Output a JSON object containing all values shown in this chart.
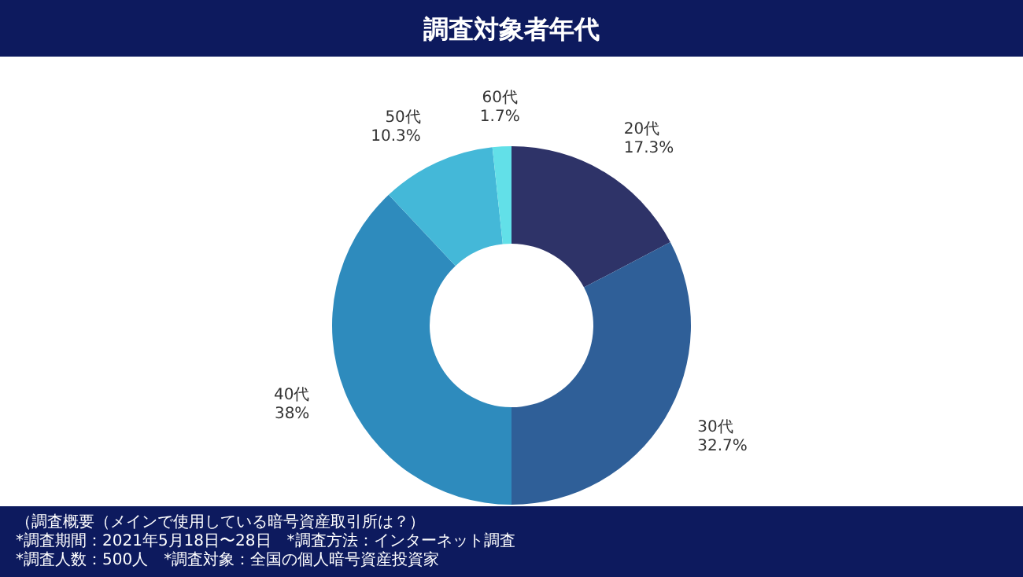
{
  "chart_data": {
    "type": "donut",
    "title": "調査対象者年代",
    "categories": [
      "20代",
      "30代",
      "40代",
      "50代",
      "60代"
    ],
    "values": [
      17.3,
      32.7,
      38,
      10.3,
      1.7
    ],
    "colors": [
      "#2e3368",
      "#2f5f98",
      "#2e8bbd",
      "#44b8d8",
      "#62e0e8"
    ],
    "value_labels": [
      "17.3%",
      "32.7%",
      "38%",
      "10.3%",
      "1.7%"
    ],
    "annotations": [
      "（調査概要（メインで使用している暗号資産取引所は？）",
      "*調査期間：2021年5月18日〜28日　*調査方法：インターネット調査",
      "*調査人数：500人　*調査対象：全国の個人暗号資産投資家"
    ]
  }
}
